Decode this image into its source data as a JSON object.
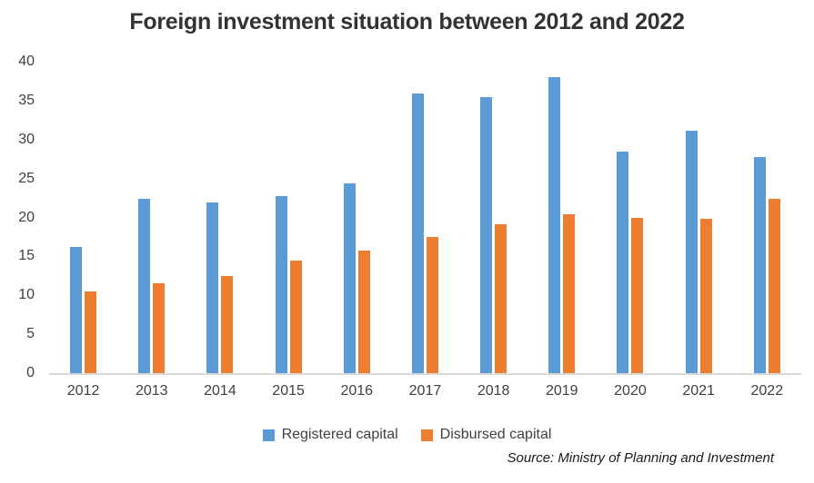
{
  "chart_data": {
    "type": "bar",
    "title": "Foreign investment situation between 2012 and 2022",
    "categories": [
      "2012",
      "2013",
      "2014",
      "2015",
      "2016",
      "2017",
      "2018",
      "2019",
      "2020",
      "2021",
      "2022"
    ],
    "series": [
      {
        "name": "Registered capital",
        "color": "#5B9BD5",
        "values": [
          16.2,
          22.4,
          21.9,
          22.8,
          24.4,
          35.9,
          35.5,
          38.0,
          28.5,
          31.1,
          27.7
        ]
      },
      {
        "name": "Disbursed capital",
        "color": "#ED7D31",
        "values": [
          10.5,
          11.5,
          12.5,
          14.5,
          15.8,
          17.5,
          19.1,
          20.4,
          20.0,
          19.8,
          22.4
        ]
      }
    ],
    "ylabel": "",
    "xlabel": "",
    "ylim": [
      0,
      40
    ],
    "yticks": [
      0,
      5,
      10,
      15,
      20,
      25,
      30,
      35,
      40
    ],
    "grid": false,
    "legend_position": "bottom",
    "source_note": "Source: Ministry of Planning and Investment"
  },
  "colors": {
    "axis_line": "#d9d9d9",
    "tick_text": "#404040",
    "title_text": "#333333"
  }
}
